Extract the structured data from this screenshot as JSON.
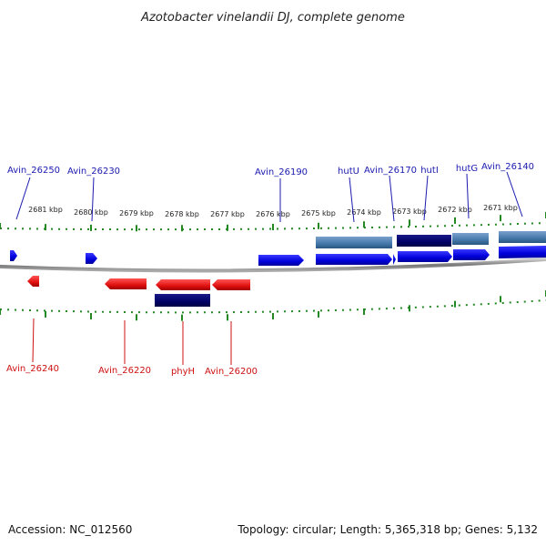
{
  "title": "Azotobacter vinelandii DJ, complete genome",
  "footer": {
    "accession": "Accession: NC_012560",
    "topology": "Topology: circular; Length: 5,365,318 bp; Genes: 5,132"
  },
  "ruler": {
    "labels": [
      "2681 kbp",
      "2680 kbp",
      "2679 kbp",
      "2678 kbp",
      "2677 kbp",
      "2676 kbp",
      "2675 kbp",
      "2674 kbp",
      "2673 kbp",
      "2672 kbp",
      "2671 kbp"
    ]
  },
  "labels": {
    "top": [
      "Avin_26250",
      "Avin_26230",
      "Avin_26190",
      "hutU",
      "Avin_26170",
      "hutI",
      "hutG",
      "Avin_26140"
    ],
    "bottom": [
      "Avin_26240",
      "Avin_26220",
      "phyH",
      "Avin_26200"
    ]
  },
  "colors": {
    "forward_gene": "#0000ee",
    "reverse_gene": "#ee1111",
    "light_feature": "#4477aa",
    "dark_feature": "#000066",
    "backbone": "#888888",
    "tick": "#228822"
  }
}
